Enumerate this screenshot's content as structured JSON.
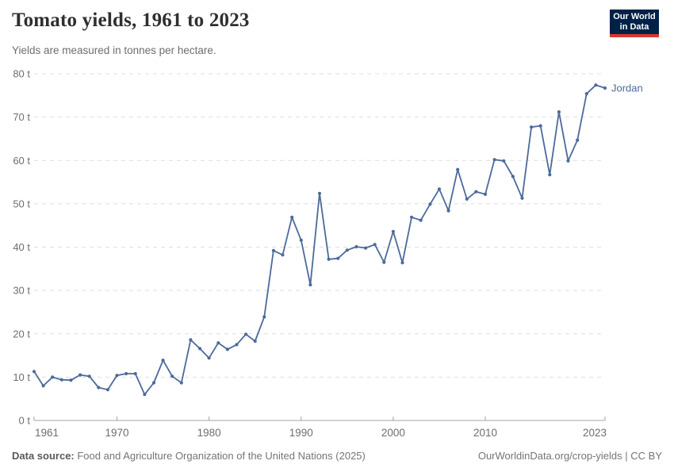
{
  "header": {
    "title": "Tomato yields, 1961 to 2023",
    "subtitle": "Yields are measured in tonnes per hectare."
  },
  "logo": {
    "line1": "Our World",
    "line2": "in Data",
    "bg_color": "#002147",
    "accent_color": "#d7382e"
  },
  "footer": {
    "source_label": "Data source:",
    "source_text": " Food and Agriculture Organization of the United Nations (2025)",
    "attribution": "OurWorldinData.org/crop-yields | CC BY"
  },
  "colors": {
    "series_blue": "#4C6A9C",
    "gridline": "#dedede",
    "axis": "#a3a3a3",
    "tick_label": "#6e6e6e"
  },
  "chart_data": {
    "type": "line",
    "title": "Tomato yields, 1961 to 2023",
    "subtitle": "Yields are measured in tonnes per hectare.",
    "unit": "tonnes per hectare",
    "xlim": [
      1961,
      2023
    ],
    "ylim": [
      0,
      80
    ],
    "ytick_interval": 10,
    "ytick_labels": [
      "0 t",
      "10 t",
      "20 t",
      "30 t",
      "40 t",
      "50 t",
      "60 t",
      "70 t",
      "80 t"
    ],
    "xticks": [
      1961,
      1970,
      1980,
      1990,
      2000,
      2010,
      2023
    ],
    "grid": "horizontal dashed",
    "legend_position": "end-of-line label",
    "series": [
      {
        "name": "Jordan",
        "color": "#4C6A9C",
        "x": [
          1961,
          1962,
          1963,
          1964,
          1965,
          1966,
          1967,
          1968,
          1969,
          1970,
          1971,
          1972,
          1973,
          1974,
          1975,
          1976,
          1977,
          1978,
          1979,
          1980,
          1981,
          1982,
          1983,
          1984,
          1985,
          1986,
          1987,
          1988,
          1989,
          1990,
          1991,
          1992,
          1993,
          1994,
          1995,
          1996,
          1997,
          1998,
          1999,
          2000,
          2001,
          2002,
          2003,
          2004,
          2005,
          2006,
          2007,
          2008,
          2009,
          2010,
          2011,
          2012,
          2013,
          2014,
          2015,
          2016,
          2017,
          2018,
          2019,
          2020,
          2021,
          2022,
          2023
        ],
        "values": [
          11.3,
          8.0,
          10.0,
          9.4,
          9.3,
          10.5,
          10.2,
          7.6,
          7.1,
          10.4,
          10.8,
          10.8,
          6.0,
          8.7,
          13.9,
          10.2,
          8.7,
          18.6,
          16.6,
          14.4,
          17.9,
          16.4,
          17.5,
          19.9,
          18.3,
          23.9,
          39.2,
          38.2,
          46.9,
          41.6,
          31.3,
          52.4,
          37.2,
          37.4,
          39.3,
          40.1,
          39.8,
          40.6,
          36.5,
          43.6,
          36.4,
          46.9,
          46.2,
          49.9,
          53.4,
          48.4,
          57.9,
          51.1,
          52.8,
          52.2,
          60.2,
          59.9,
          56.3,
          51.3,
          67.7,
          68.0,
          56.7,
          71.2,
          59.9,
          64.7,
          75.4,
          77.4,
          76.7
        ]
      }
    ]
  }
}
